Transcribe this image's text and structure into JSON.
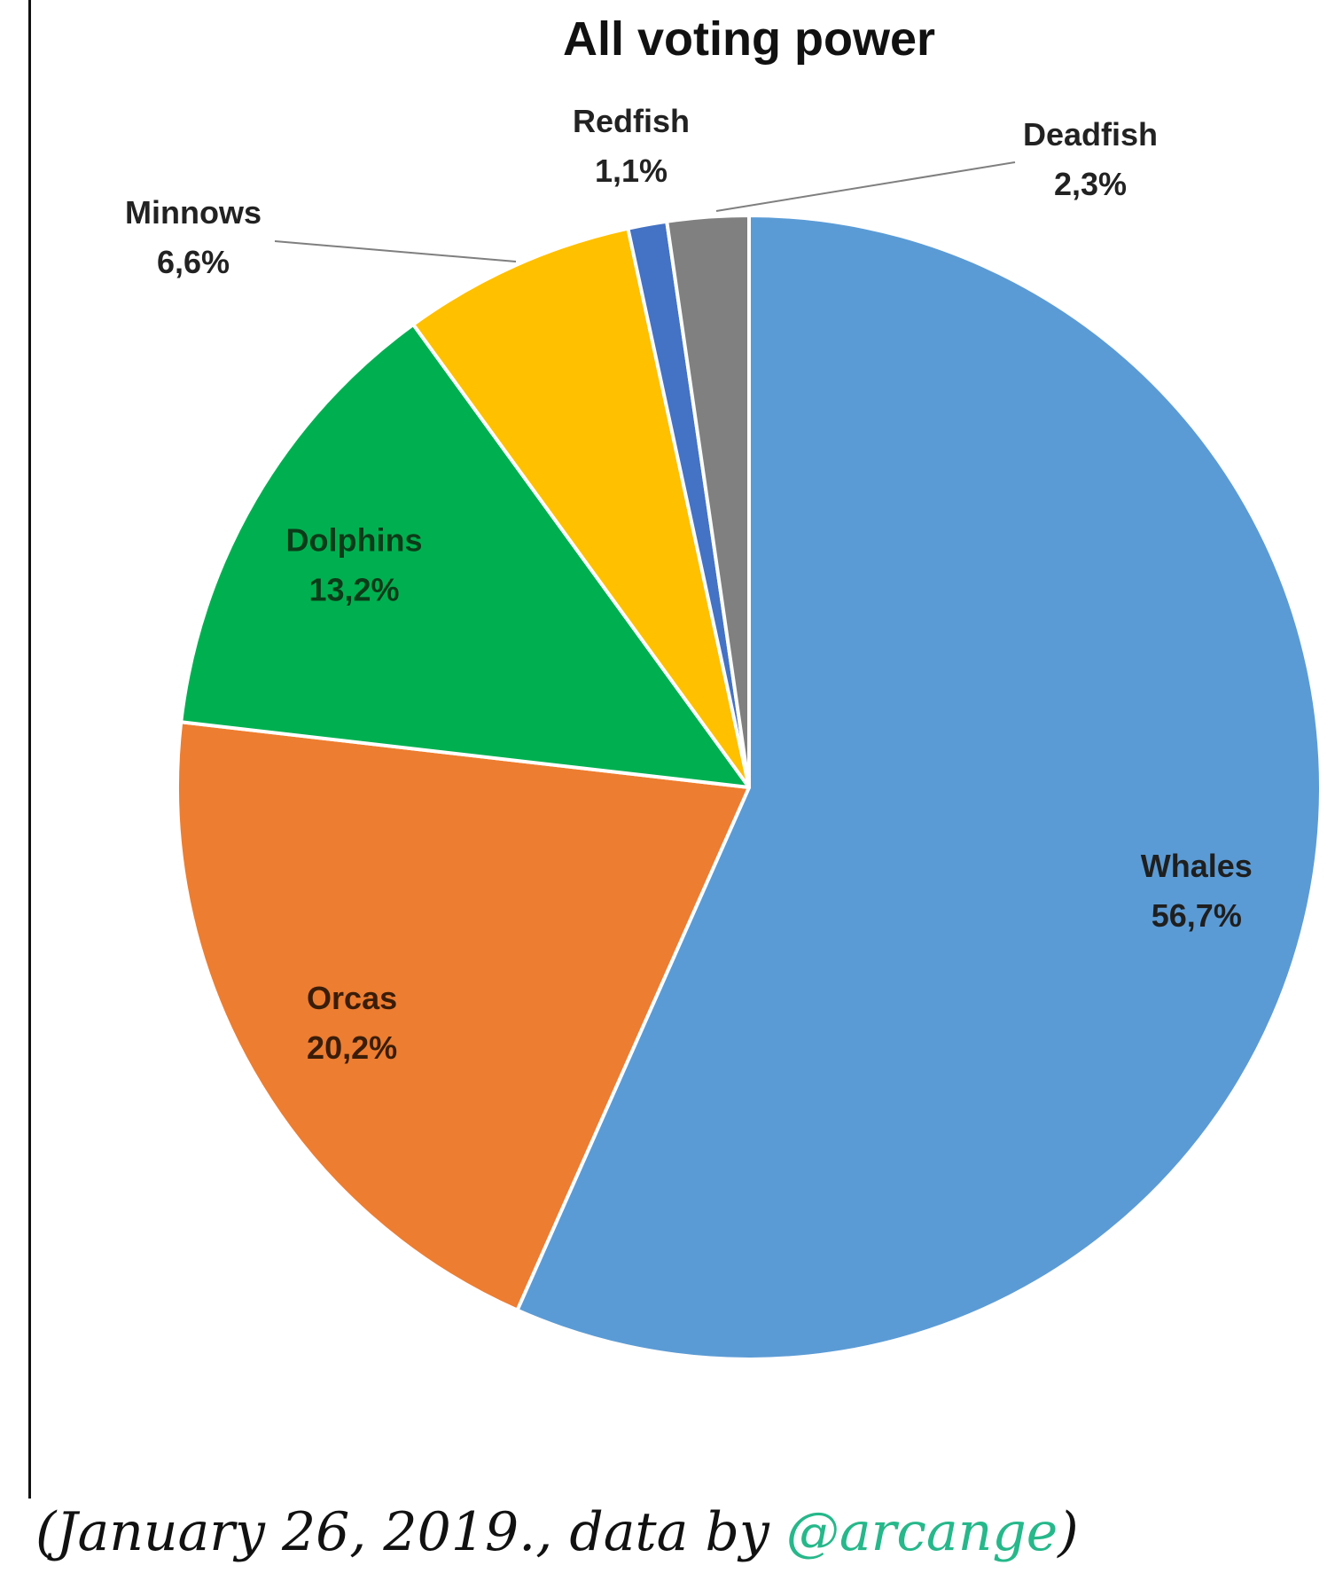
{
  "chart_data": {
    "type": "pie",
    "title": "All voting power",
    "slices": [
      {
        "name": "Whales",
        "value": 56.7,
        "label": "56,7%",
        "color": "#5b9bd5"
      },
      {
        "name": "Orcas",
        "value": 20.2,
        "label": "20,2%",
        "color": "#ed7d31"
      },
      {
        "name": "Dolphins",
        "value": 13.2,
        "label": "13,2%",
        "color": "#00b050"
      },
      {
        "name": "Minnows",
        "value": 6.6,
        "label": "6,6%",
        "color": "#ffc000"
      },
      {
        "name": "Redfish",
        "value": 1.1,
        "label": "1,1%",
        "color": "#4472c4"
      },
      {
        "name": "Deadfish",
        "value": 2.3,
        "label": "2,3%",
        "color": "#808080"
      }
    ],
    "start_angle_deg": 0,
    "direction": "clockwise"
  },
  "caption": {
    "prefix": "(January 26, 2019., data by ",
    "link_text": "@arcange",
    "suffix": ")",
    "link_color": "#26b88a"
  }
}
